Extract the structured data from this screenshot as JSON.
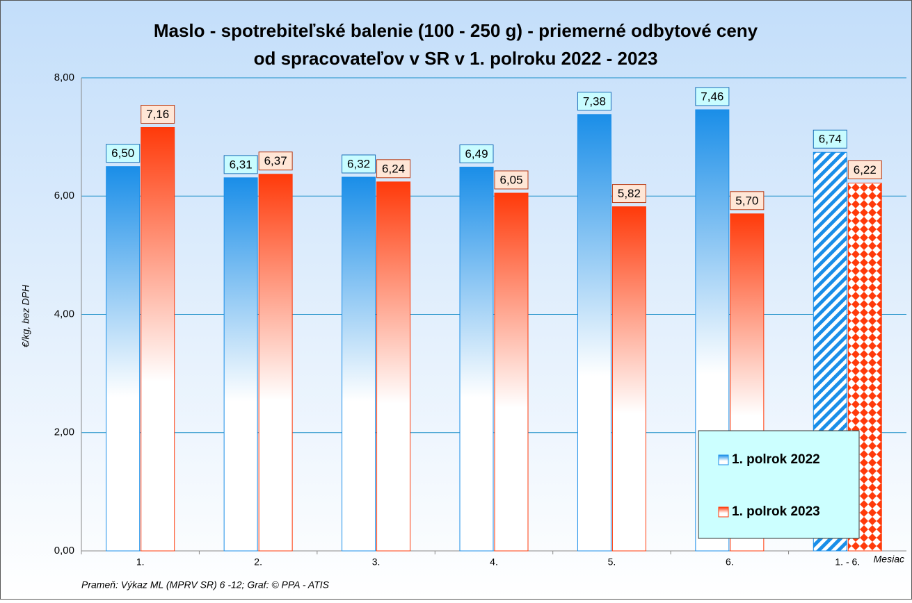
{
  "chart_data": {
    "type": "bar",
    "title": [
      "Maslo - spotrebiteľské balenie (100 - 250 g) - priemerné odbytové ceny",
      "od spracovateľov v SR v 1. polroku 2022 - 2023"
    ],
    "y_label": "€/kg, bez DPH",
    "x_label": "Mesiac",
    "source": "Prameň: Výkaz ML (MPRV SR) 6 -12; Graf: © PPA - ATIS",
    "categories": [
      "1.",
      "2.",
      "3.",
      "4.",
      "5.",
      "6.",
      "1. - 6."
    ],
    "series": [
      {
        "name": "1. polrok 2022",
        "color": "#1a8ee8",
        "values": [
          6.5,
          6.31,
          6.32,
          6.49,
          7.38,
          7.46,
          6.74
        ],
        "value_labels": [
          "6,50",
          "6,31",
          "6,32",
          "6,49",
          "7,38",
          "7,46",
          "6,74"
        ]
      },
      {
        "name": "1. polrok 2023",
        "color": "#ff3a0a",
        "values": [
          7.16,
          6.37,
          6.24,
          6.05,
          5.82,
          5.7,
          6.22
        ],
        "value_labels": [
          "7,16",
          "6,37",
          "6,24",
          "6,05",
          "5,82",
          "5,70",
          "6,22"
        ]
      }
    ],
    "ylim": [
      0,
      8
    ],
    "yticks": [
      {
        "value": 0,
        "label": "0,00"
      },
      {
        "value": 2,
        "label": "2,00"
      },
      {
        "value": 4,
        "label": "4,00"
      },
      {
        "value": 6,
        "label": "6,00"
      },
      {
        "value": 8,
        "label": "8,00"
      }
    ],
    "grid": true,
    "legend": "lower right"
  }
}
